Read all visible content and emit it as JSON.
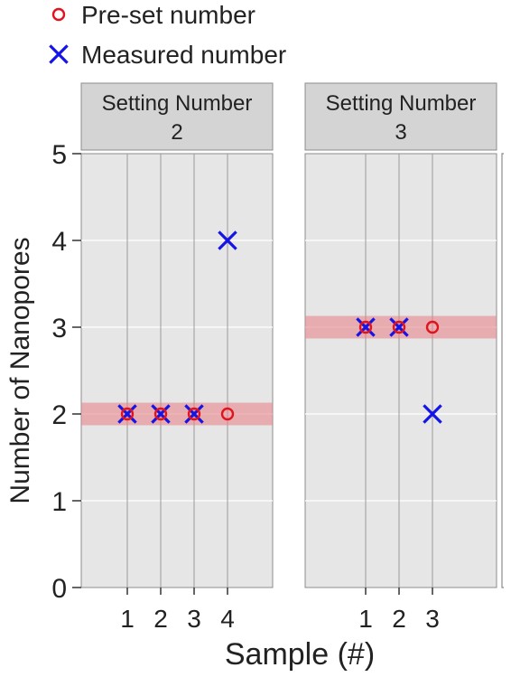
{
  "chart_data": {
    "type": "scatter",
    "ylabel": "Number of Nanopores",
    "xlabel": "Sample (#)",
    "ylim": [
      0,
      5
    ],
    "yticks": [
      0,
      1,
      2,
      3,
      4,
      5
    ],
    "grid": true,
    "legend_position": "top-left",
    "series": [
      {
        "name": "Pre-set number",
        "marker": "circle",
        "color": "#e0141e"
      },
      {
        "name": "Measured number",
        "marker": "x",
        "color": "#1414e6"
      }
    ],
    "band_color": "#e8868c",
    "panels": [
      {
        "title_line1": "Setting Number",
        "title_line2": "2",
        "samples": [
          "1",
          "2",
          "3",
          "4"
        ],
        "preset": [
          2,
          2,
          2,
          2
        ],
        "measured": [
          2,
          2,
          2,
          4
        ],
        "band": [
          1.87,
          2.13
        ]
      },
      {
        "title_line1": "Setting Number",
        "title_line2": "3",
        "samples": [
          "1",
          "2",
          "3"
        ],
        "preset": [
          3,
          3,
          3
        ],
        "measured": [
          3,
          3,
          2
        ],
        "band": [
          2.87,
          3.13
        ]
      }
    ]
  }
}
